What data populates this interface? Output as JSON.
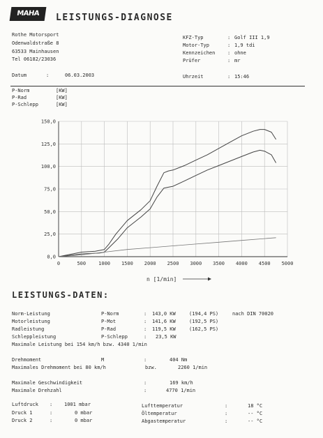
{
  "header": {
    "logo": "MAHA",
    "title": "LEISTUNGS-DIAGNOSE"
  },
  "address": {
    "line1": "Rothe Motorsport",
    "line2": "Odenwaldstraße 8",
    "line3": "63533 Mainhausen",
    "line4": "Tel 06182/23036"
  },
  "vehicle": {
    "kfz_label": "KFZ-Typ",
    "kfz_value": "Golf III 1,9",
    "motor_label": "Motor-Typ",
    "motor_value": "1,9 tdi",
    "kenn_label": "Kennzeichen",
    "kenn_value": "ohne",
    "pruefer_label": "Prüfer",
    "pruefer_value": "mr"
  },
  "date": {
    "label": "Datum",
    "value": "06.03.2003"
  },
  "time": {
    "label": "Uhrzeit",
    "value": "15:46"
  },
  "legend": {
    "norm": "P-Norm",
    "norm_unit": "[KW]",
    "rad": "P-Rad",
    "rad_unit": "[KW]",
    "schlepp": "P-Schlepp",
    "schlepp_unit": "[KW]"
  },
  "chart_data": {
    "type": "line",
    "xlabel": "n [1/min]",
    "ylabel": "",
    "xlim": [
      0,
      5000
    ],
    "ylim": [
      0,
      150
    ],
    "x_ticks": [
      0,
      500,
      1000,
      1500,
      2000,
      2500,
      3000,
      3500,
      4000,
      4500,
      5000
    ],
    "x_tick_labels": [
      "0",
      "500",
      "1000",
      "1500",
      "2000",
      "2500",
      "3000",
      "3500",
      "4000",
      "4500",
      "5000"
    ],
    "y_ticks": [
      0,
      25,
      50,
      75,
      100,
      125,
      150
    ],
    "y_tick_labels": [
      "0,0",
      "25,0",
      "50,0",
      "75,0",
      "100,0",
      "125,0",
      "150,0"
    ],
    "grid": true,
    "series": [
      {
        "name": "P-Norm",
        "x": [
          0,
          500,
          800,
          1000,
          1100,
          1250,
          1500,
          1800,
          2000,
          2150,
          2300,
          2400,
          2500,
          2750,
          3000,
          3250,
          3500,
          3750,
          4000,
          4250,
          4400,
          4500,
          4650,
          4750
        ],
        "y": [
          0,
          5,
          6,
          8,
          14,
          25,
          40,
          52,
          62,
          78,
          93,
          95,
          96,
          101,
          107,
          113,
          120,
          127,
          134,
          139,
          141,
          141,
          138,
          130
        ]
      },
      {
        "name": "P-Rad",
        "x": [
          0,
          500,
          900,
          1000,
          1100,
          1300,
          1500,
          1800,
          2000,
          2150,
          2300,
          2400,
          2500,
          2750,
          3000,
          3250,
          3500,
          3750,
          4000,
          4250,
          4400,
          4500,
          4650,
          4750
        ],
        "y": [
          0,
          3,
          4,
          5,
          10,
          20,
          32,
          44,
          53,
          66,
          76,
          77,
          78,
          84,
          90,
          96,
          101,
          106,
          111,
          116,
          118,
          117,
          113,
          104
        ]
      },
      {
        "name": "P-Schlepp",
        "x": [
          0,
          500,
          1000,
          1500,
          2000,
          2500,
          3000,
          3500,
          4000,
          4500,
          4750
        ],
        "y": [
          0,
          2,
          5,
          8,
          10,
          12,
          14,
          16,
          18,
          20,
          21
        ]
      }
    ]
  },
  "section2": {
    "title": "LEISTUNGS-DATEN:"
  },
  "perf": {
    "r1_label": "Norm-Leistung",
    "r1_code": "P-Norm",
    "r1_kw": "143,0 KW",
    "r1_ps": "(194,4 PS)",
    "r1_din": "nach DIN 70020",
    "r2_label": "Motorleistung",
    "r2_code": "P-Mot",
    "r2_kw": "141,6 KW",
    "r2_ps": "(192,5 PS)",
    "r3_label": "Radleistung",
    "r3_code": "P-Rad",
    "r3_kw": "119,5 KW",
    "r3_ps": "(162,5 PS)",
    "r4_label": "Schleppleistung",
    "r4_code": "P-Schlepp",
    "r4_kw": "23,5 KW",
    "r5_text": "Maximale Leistung bei 154 km/h bzw. 4340 1/min"
  },
  "torque": {
    "label": "Drehmoment",
    "code": "M",
    "value": "404 Nm",
    "max_label": "Maximales Drehmoment bei  80 km/h",
    "bzw": "bzw.",
    "max_rpm": "2260 1/min"
  },
  "speed": {
    "v_label": "Maximale Geschwindigkeit",
    "v_value": "169 km/h",
    "n_label": "Maximale Drehzahl",
    "n_value": "4770 1/min"
  },
  "env": {
    "luft_label": "Luftdruck",
    "luft_value": "1001 mbar",
    "d1_label": "Druck 1",
    "d1_value": "0 mbar",
    "d2_label": "Druck 2",
    "d2_value": "0 mbar",
    "lt_label": "Lufttemperatur",
    "lt_value": "18 °C",
    "ot_label": "Öltemperatur",
    "ot_value": "-- °C",
    "at_label": "Abgastemperatur",
    "at_value": "-- °C",
    "colon": ":"
  }
}
